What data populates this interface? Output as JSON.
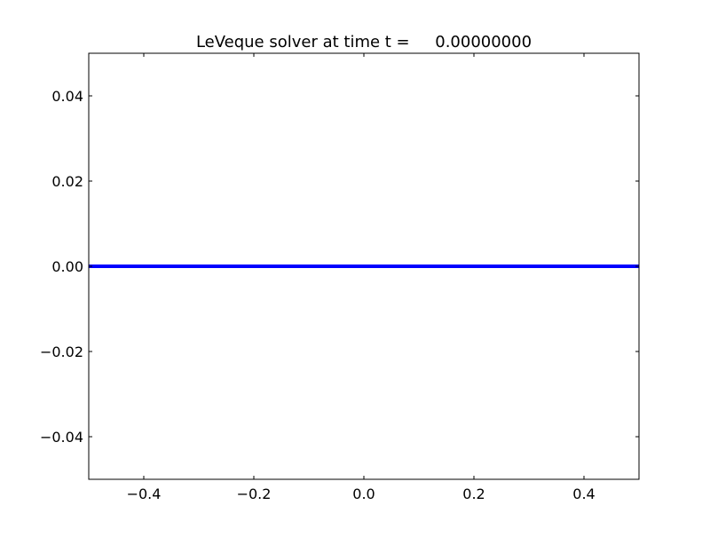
{
  "chart_data": {
    "type": "line",
    "title": "LeVeque solver at time t =     0.00000000",
    "xlabel": "",
    "ylabel": "",
    "xlim": [
      -0.5,
      0.5
    ],
    "ylim": [
      -0.05,
      0.05
    ],
    "xticks": [
      -0.4,
      -0.2,
      0.0,
      0.2,
      0.4
    ],
    "xtick_labels": [
      "−0.4",
      "−0.2",
      "0.0",
      "0.2",
      "0.4"
    ],
    "yticks": [
      0.04,
      0.02,
      0.0,
      -0.02,
      -0.04
    ],
    "ytick_labels": [
      "0.04",
      "0.02",
      "0.00",
      "−0.02",
      "−0.04"
    ],
    "grid": false,
    "series": [
      {
        "color": "#0000ff",
        "x": [
          -0.5,
          0.5
        ],
        "y": [
          0.0,
          0.0
        ]
      }
    ]
  }
}
